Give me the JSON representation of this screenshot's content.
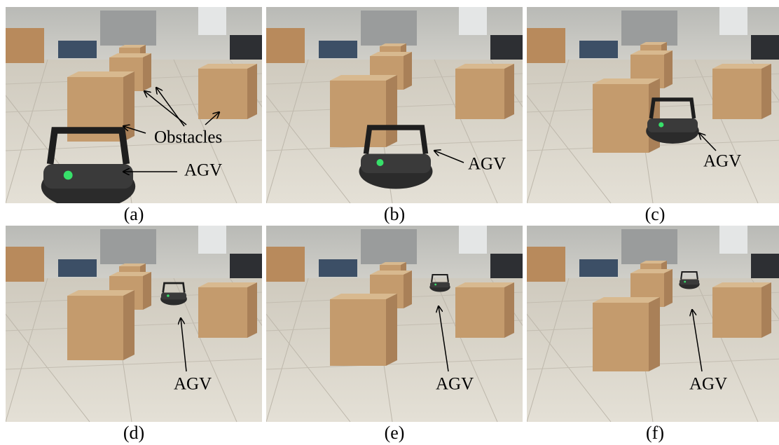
{
  "panels": [
    {
      "label": "(a)",
      "obstacles_label": "Obstacles",
      "agv_label": "AGV"
    },
    {
      "label": "(b)",
      "agv_label": "AGV"
    },
    {
      "label": "(c)",
      "agv_label": "AGV"
    },
    {
      "label": "(d)",
      "agv_label": "AGV"
    },
    {
      "label": "(e)",
      "agv_label": "AGV"
    },
    {
      "label": "(f)",
      "agv_label": "AGV"
    }
  ]
}
